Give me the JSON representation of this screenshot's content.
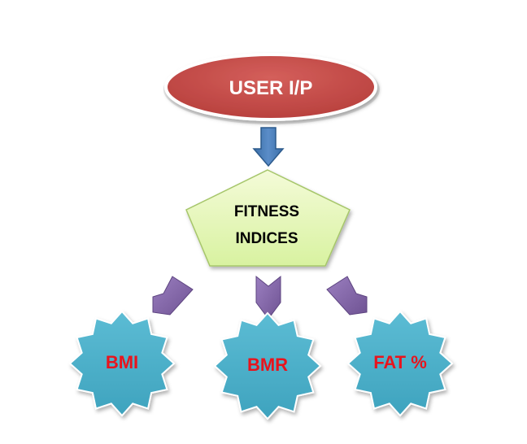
{
  "input_node": {
    "label": "USER I/P",
    "fill": "#c0504d",
    "text_color": "#ffffff"
  },
  "center_node": {
    "label_line1": "FITNESS",
    "label_line2": "INDICES",
    "fill": "#e6f7b0",
    "text_color": "#000000"
  },
  "arrows": {
    "down_arrow_color": "#4f81bd",
    "chevron_color": "#8064a2"
  },
  "outputs": [
    {
      "label": "BMI",
      "shape": "star-burst"
    },
    {
      "label": "BMR",
      "shape": "star-burst"
    },
    {
      "label": "FAT %",
      "shape": "star-burst"
    }
  ],
  "output_style": {
    "fill": "#4bacc6",
    "text_color": "#e8141d"
  }
}
